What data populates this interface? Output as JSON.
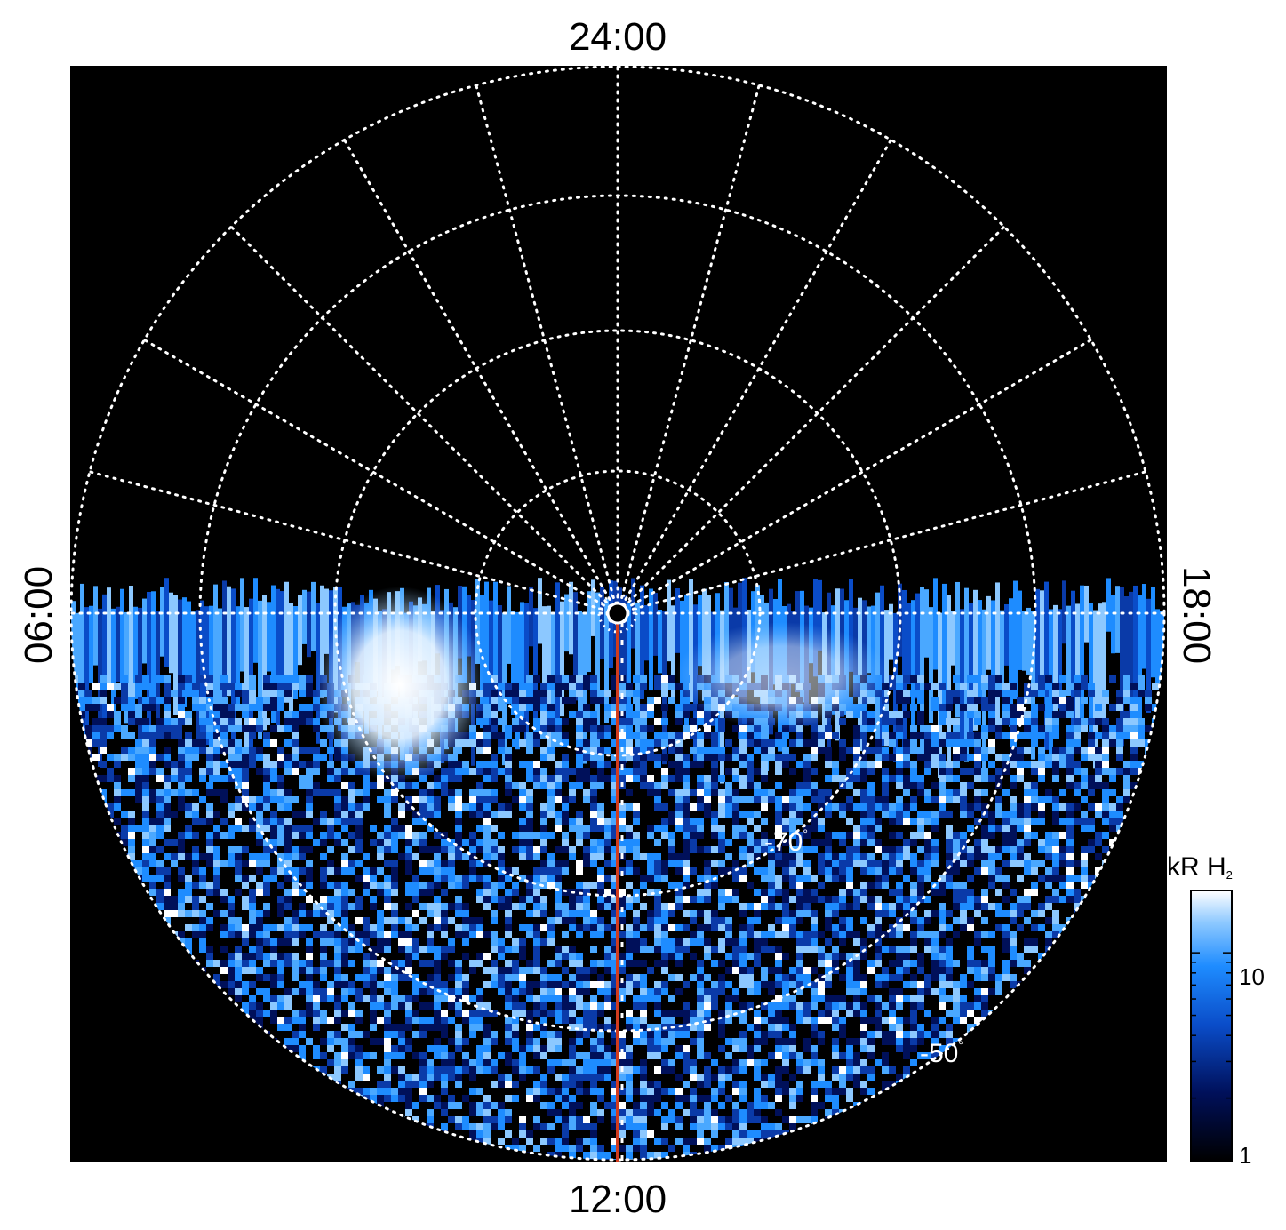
{
  "figure": {
    "local_time_labels": {
      "top": "24:00",
      "bottom": "12:00",
      "left": "06:00",
      "right": "18:00"
    },
    "latitude_labels": [
      {
        "text": "-70",
        "unit": "°"
      },
      {
        "text": "-50",
        "unit": "°"
      }
    ],
    "colorbar": {
      "title_main": "kR H",
      "title_sub": "2",
      "scale": "log",
      "ticks": [
        "10",
        "1"
      ],
      "colors": [
        "#000000",
        "#00105a",
        "#0a4cc8",
        "#1e8cff",
        "#8cc8ff",
        "#ffffff"
      ]
    },
    "colors": {
      "background": "#000000",
      "grid": "#ffffff",
      "meridian_line": "#d23c1e"
    }
  }
}
